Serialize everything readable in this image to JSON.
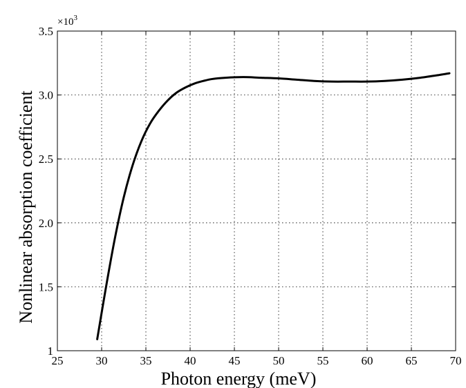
{
  "chart_data": {
    "type": "line",
    "title": "",
    "xlabel": "Photon energy (meV)",
    "ylabel": "Nonlinear absorption coefficient",
    "y_exponent_prefix": "×10",
    "y_exponent_power": "3",
    "xlim": [
      25,
      70
    ],
    "ylim": [
      1,
      3.5
    ],
    "x_ticks": [
      25,
      30,
      35,
      40,
      45,
      50,
      55,
      60,
      65,
      70
    ],
    "x_tick_labels": [
      "25",
      "30",
      "35",
      "40",
      "45",
      "50",
      "55",
      "60",
      "65",
      "70"
    ],
    "y_ticks": [
      1,
      1.5,
      2,
      2.5,
      3,
      3.5
    ],
    "y_tick_labels": [
      "1",
      "1.5",
      "2.0",
      "2.5",
      "3.0",
      "3.5"
    ],
    "grid": true,
    "series": [
      {
        "color": "#000000",
        "x": [
          29.5,
          30.5,
          31.5,
          32.5,
          33.5,
          34.5,
          35.5,
          36.5,
          37.5,
          38.5,
          39.5,
          40.5,
          41.5,
          42.5,
          44,
          46,
          48,
          50,
          52,
          54,
          56,
          58,
          60,
          62,
          64,
          66,
          68,
          69.3
        ],
        "y": [
          1.09,
          1.5,
          1.88,
          2.2,
          2.45,
          2.64,
          2.78,
          2.88,
          2.96,
          3.02,
          3.06,
          3.09,
          3.11,
          3.125,
          3.135,
          3.14,
          3.135,
          3.13,
          3.12,
          3.11,
          3.105,
          3.105,
          3.105,
          3.11,
          3.12,
          3.135,
          3.155,
          3.17
        ]
      }
    ]
  }
}
